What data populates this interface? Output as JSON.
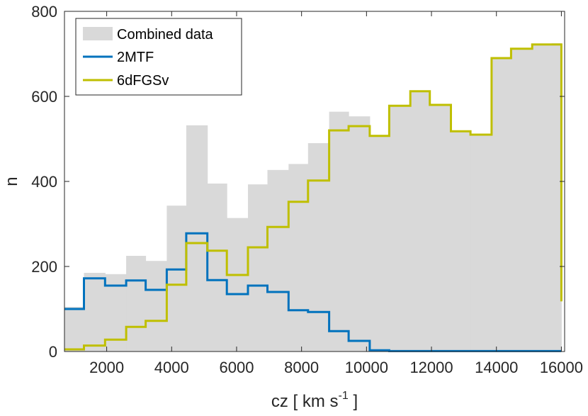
{
  "chart_data": {
    "type": "histogram",
    "xlabel": "cz   [ km s",
    "xlabel_sup": "-1",
    "xlabel_close": " ]",
    "ylabel": "n",
    "xlim": [
      700,
      16100
    ],
    "ylim": [
      0,
      800
    ],
    "xticks": [
      2000,
      4000,
      6000,
      8000,
      10000,
      12000,
      14000,
      16000
    ],
    "yticks": [
      0,
      200,
      400,
      600,
      800
    ],
    "bin_edges": [
      700,
      1300,
      1950,
      2600,
      3200,
      3850,
      4450,
      5100,
      5700,
      6350,
      6950,
      7600,
      8200,
      8850,
      9450,
      10100,
      10700,
      11350,
      11950,
      12600,
      13200,
      13850,
      14450,
      15100,
      15700,
      16000
    ],
    "series": [
      {
        "name": "Combined data",
        "style": "filled",
        "color": "#d9d9d9",
        "values": [
          105,
          185,
          182,
          225,
          213,
          343,
          532,
          395,
          314,
          393,
          427,
          441,
          490,
          564,
          553,
          506,
          577,
          612,
          580,
          518,
          509,
          690,
          711,
          722,
          725
        ]
      },
      {
        "name": "2MTF",
        "style": "stairs",
        "color": "#0072bd",
        "values": [
          100,
          172,
          155,
          167,
          145,
          193,
          278,
          168,
          135,
          155,
          140,
          97,
          93,
          48,
          25,
          3,
          1,
          1,
          1,
          1,
          1,
          1,
          1,
          1,
          1
        ]
      },
      {
        "name": "6dFGSv",
        "style": "stairs",
        "color": "#bfbf00",
        "values": [
          5,
          14,
          28,
          58,
          72,
          157,
          255,
          237,
          180,
          245,
          293,
          352,
          402,
          520,
          530,
          507,
          578,
          612,
          580,
          518,
          510,
          690,
          712,
          722,
          722
        ],
        "end_drop_to": 118
      }
    ]
  }
}
